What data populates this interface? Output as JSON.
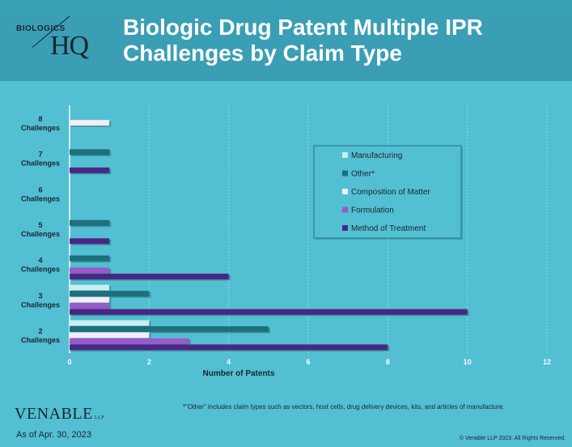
{
  "header": {
    "logo_top": "BIOLOGICS",
    "logo_main": "HQ",
    "title_line1": "Biologic Drug Patent Multiple IPR",
    "title_line2": "Challenges by Claim Type"
  },
  "footer": {
    "logo": "VENABLE",
    "logo_suffix": "LLP",
    "date": "As of Apr. 30, 2023",
    "footnote": "*\"Other\" includes claim types such as vectors, host cells, drug delivery devices, kits, and articles of manufacture.",
    "copyright": "© Venable LLP 2023. All Rights Reserved."
  },
  "chart_data": {
    "type": "bar",
    "orientation": "horizontal",
    "xlabel": "Number of Patents",
    "xlim": [
      0,
      12
    ],
    "xticks": [
      0,
      2,
      4,
      6,
      8,
      10,
      12
    ],
    "grid": "vertical dashed",
    "legend_position": "right",
    "categories": [
      [
        "8",
        "Challenges"
      ],
      [
        "7",
        "Challenges"
      ],
      [
        "6",
        "Challenges"
      ],
      [
        "5",
        "Challenges"
      ],
      [
        "4",
        "Challenges"
      ],
      [
        "3",
        "Challenges"
      ],
      [
        "2",
        "Challenges"
      ]
    ],
    "series": [
      {
        "name": "Manufacturing",
        "color": "#c8eef3",
        "values": [
          0,
          0,
          0,
          0,
          0,
          1,
          2
        ]
      },
      {
        "name": "Other*",
        "color": "#1d6f7c",
        "values": [
          0,
          1,
          0,
          1,
          1,
          2,
          5
        ]
      },
      {
        "name": "Composition of Matter",
        "color": "#f1eef8",
        "values": [
          1,
          0,
          0,
          0,
          0,
          1,
          2
        ]
      },
      {
        "name": "Formulation",
        "color": "#9b59c9",
        "values": [
          0,
          0,
          0,
          0,
          1,
          1,
          3
        ]
      },
      {
        "name": "Method of Treatment",
        "color": "#4b2685",
        "values": [
          0,
          1,
          0,
          1,
          4,
          10,
          8
        ]
      }
    ]
  }
}
